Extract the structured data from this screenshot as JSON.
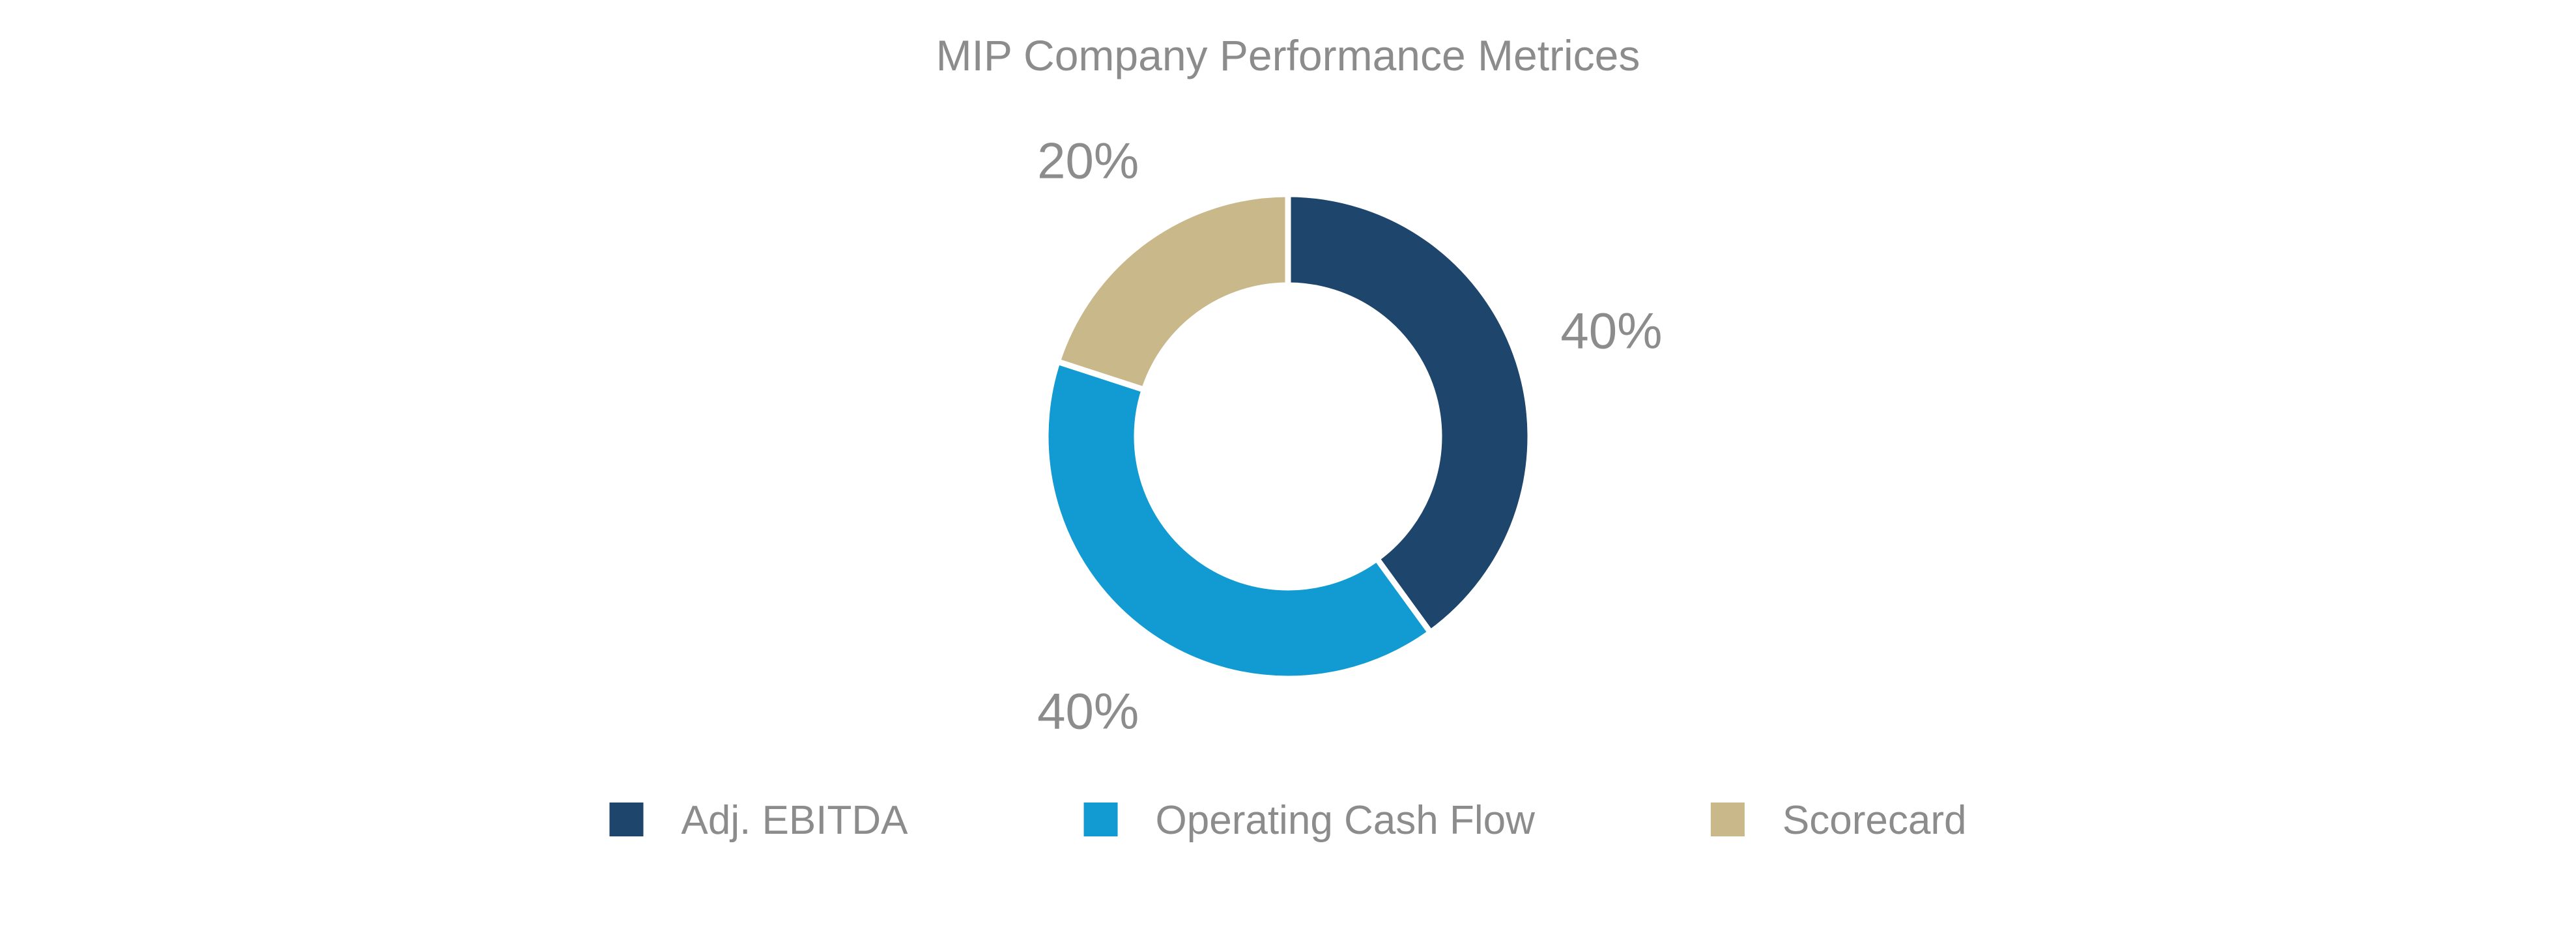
{
  "chart_data": {
    "type": "pie",
    "title": "MIP Company Performance Metrices",
    "categories": [
      "Adj. EBITDA",
      "Operating Cash Flow",
      "Scorecard"
    ],
    "values": [
      40,
      40,
      20
    ],
    "data_labels": [
      "40%",
      "40%",
      "20%"
    ],
    "colors": [
      "#1e456c",
      "#119bd2",
      "#c8b88a"
    ],
    "donut": true,
    "legend_position": "bottom"
  }
}
